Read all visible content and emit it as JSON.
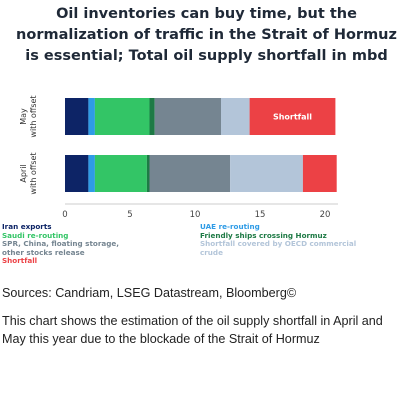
{
  "title_lines": [
    "Oil inventories can buy time, but the",
    "normalization of traffic in the Strait of Hormuz",
    "is essential; Total oil supply shortfall in mbd"
  ],
  "chart_data": {
    "type": "bar",
    "orientation": "horizontal",
    "stacked": true,
    "categories": [
      "May\nwith offset",
      "April\nwith offset"
    ],
    "xlim": [
      0,
      21
    ],
    "xticks": [
      0,
      5,
      10,
      15,
      20
    ],
    "series": [
      {
        "name": "Iran exports",
        "color": "#0d2466",
        "values": [
          1.8,
          1.8
        ]
      },
      {
        "name": "UAE re-routing",
        "color": "#2e9be6",
        "values": [
          0.5,
          0.5
        ]
      },
      {
        "name": "Saudi re-routing",
        "color": "#33c566",
        "values": [
          4.2,
          4.0
        ]
      },
      {
        "name": "Friendly ships crossing Hormuz",
        "color": "#1e7a45",
        "values": [
          0.4,
          0.2
        ]
      },
      {
        "name": "SPR, China, floating storage, other stocks release",
        "color": "#758591",
        "values": [
          5.1,
          6.2
        ]
      },
      {
        "name": "Shortfall covered by OECD commercial crude",
        "color": "#b3c5d9",
        "values": [
          2.2,
          5.6
        ]
      },
      {
        "name": "Shortfall",
        "color": "#ec4145",
        "values": [
          6.6,
          2.6
        ]
      }
    ],
    "annotations": [
      {
        "category": "May\nwith offset",
        "series": "Shortfall",
        "text": "Shortfall"
      }
    ],
    "legend_position": "bottom"
  },
  "sources": "Sources: Candriam, LSEG Datastream, Bloomberg©",
  "description": "This chart shows the estimation of the oil supply shortfall in April and May this year due to the blockade of the Strait of Hormuz"
}
